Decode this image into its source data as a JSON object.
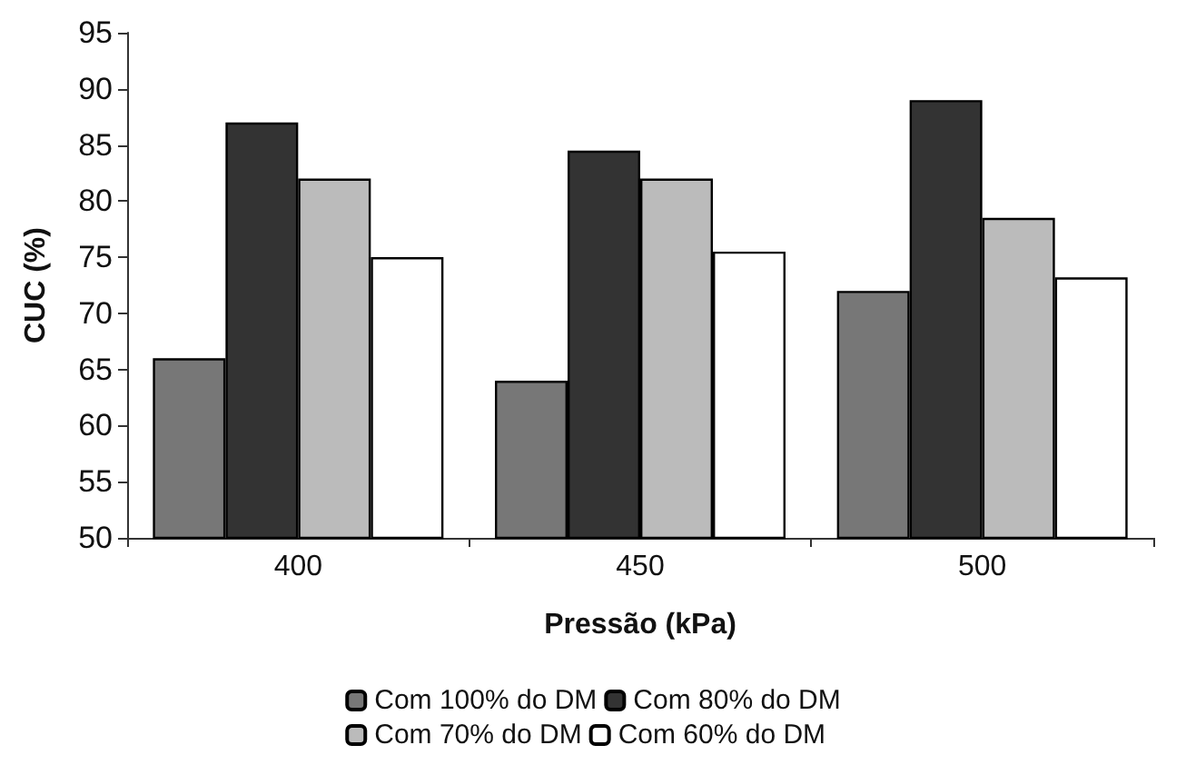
{
  "chart_data": {
    "type": "bar",
    "xlabel": "Pressão (kPa)",
    "ylabel": "CUC (%)",
    "categories": [
      "400",
      "450",
      "500"
    ],
    "series": [
      {
        "name": "Com 100% do DM",
        "color": "#777777",
        "values": [
          66,
          64,
          72
        ]
      },
      {
        "name": "Com 80% do DM",
        "color": "#333333",
        "values": [
          87,
          84.5,
          89
        ]
      },
      {
        "name": "Com 70% do DM",
        "color": "#bbbbbb",
        "values": [
          82,
          82,
          78.5
        ]
      },
      {
        "name": "Com 60% do DM",
        "color": "#ffffff",
        "values": [
          75,
          75.5,
          73.2
        ]
      }
    ],
    "ylim": [
      50,
      95
    ],
    "yticks": [
      50,
      55,
      60,
      65,
      70,
      75,
      80,
      85,
      90,
      95
    ],
    "grid": false,
    "legend": "bottom"
  }
}
